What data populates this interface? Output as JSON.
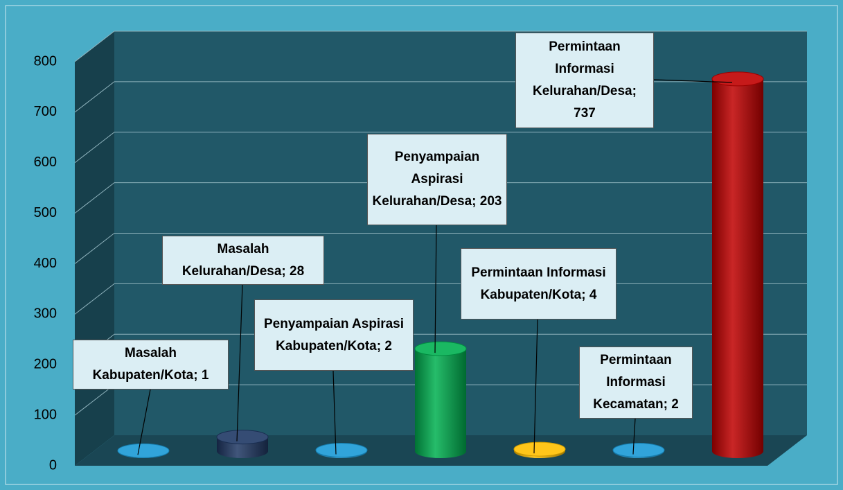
{
  "chart_data": {
    "type": "bar3d",
    "categories": [
      "Masalah Kabupaten/Kota",
      "Masalah Kelurahan/Desa",
      "Penyampaian Aspirasi Kabupaten/Kota",
      "Penyampaian Aspirasi Kelurahan/Desa",
      "Permintaan Informasi Kabupaten/Kota",
      "Permintaan Informasi Kecamatan",
      "Permintaan Informasi Kelurahan/Desa"
    ],
    "values": [
      1,
      28,
      2,
      203,
      4,
      2,
      737
    ],
    "value_labels": [
      "Masalah Kabupaten/Kota; 1",
      "Masalah Kelurahan/Desa; 28",
      "Penyampaian Aspirasi Kabupaten/Kota; 2",
      "Penyampaian Aspirasi Kelurahan/Desa; 203",
      "Permintaan Informasi Kabupaten/Kota; 4",
      "Permintaan Informasi Kecamatan; 2",
      "Permintaan Informasi Kelurahan/Desa; 737"
    ],
    "colors": [
      "#1a9ad6",
      "#1f3864",
      "#1a9ad6",
      "#00b050",
      "#ffc000",
      "#1a9ad6",
      "#c00000"
    ],
    "ylim": [
      0,
      800
    ],
    "yticks": [
      0,
      100,
      200,
      300,
      400,
      500,
      600,
      700,
      800
    ],
    "grid": true
  }
}
